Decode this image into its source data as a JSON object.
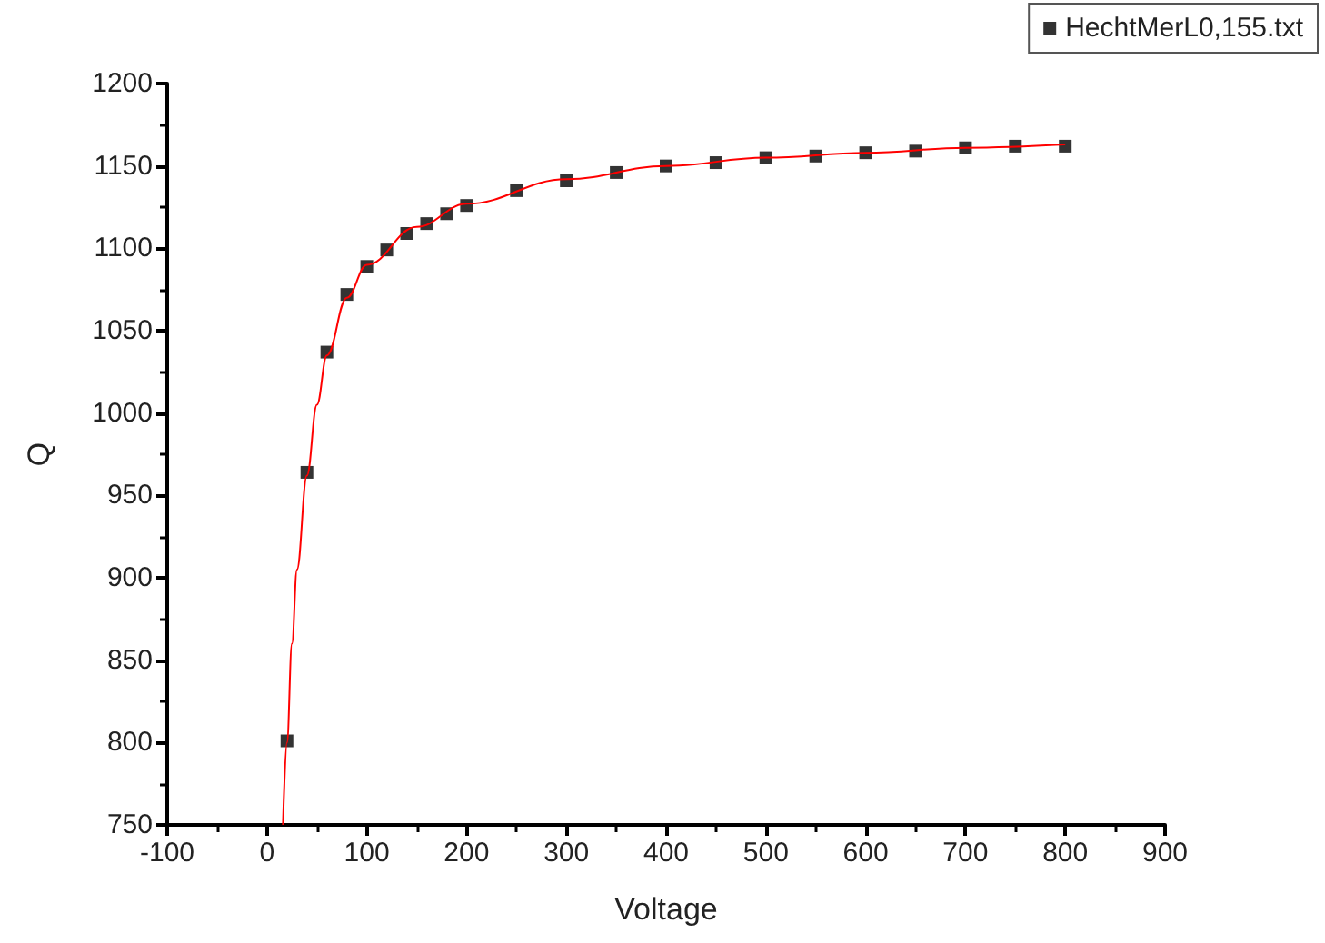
{
  "chart_data": {
    "type": "scatter",
    "xlabel": "Voltage",
    "ylabel": "Q",
    "xlim": [
      -100,
      900
    ],
    "xticks": [
      -100,
      0,
      100,
      200,
      300,
      400,
      500,
      600,
      700,
      800,
      900
    ],
    "ylim": [
      750,
      1200
    ],
    "yticks": [
      750,
      800,
      850,
      900,
      950,
      1000,
      1050,
      1100,
      1150,
      1200
    ],
    "grid": false,
    "legend": "top right",
    "marker": "square",
    "series": [
      {
        "name": "HechtMerL0,155.txt",
        "color": "#000000",
        "x": [
          20,
          40,
          60,
          80,
          100,
          120,
          140,
          160,
          180,
          200,
          250,
          300,
          350,
          400,
          450,
          500,
          550,
          600,
          650,
          700,
          750,
          800
        ],
        "values": [
          801,
          964,
          1037,
          1072,
          1089,
          1099,
          1109,
          1115,
          1121,
          1126,
          1135,
          1141,
          1146,
          1150,
          1152,
          1155,
          1156,
          1158,
          1159,
          1161,
          1162,
          1162
        ]
      },
      {
        "type": "line",
        "color": "#ff0000",
        "marker": "none",
        "line_style": "solid",
        "x": [
          16,
          20,
          25,
          30,
          40,
          50,
          60,
          80,
          100,
          150,
          200,
          300,
          400,
          500,
          600,
          700,
          800
        ],
        "values": [
          750,
          800,
          860,
          905,
          962,
          1005,
          1035,
          1070,
          1090,
          1113,
          1127,
          1142,
          1150,
          1155,
          1158,
          1161,
          1163
        ]
      }
    ]
  }
}
